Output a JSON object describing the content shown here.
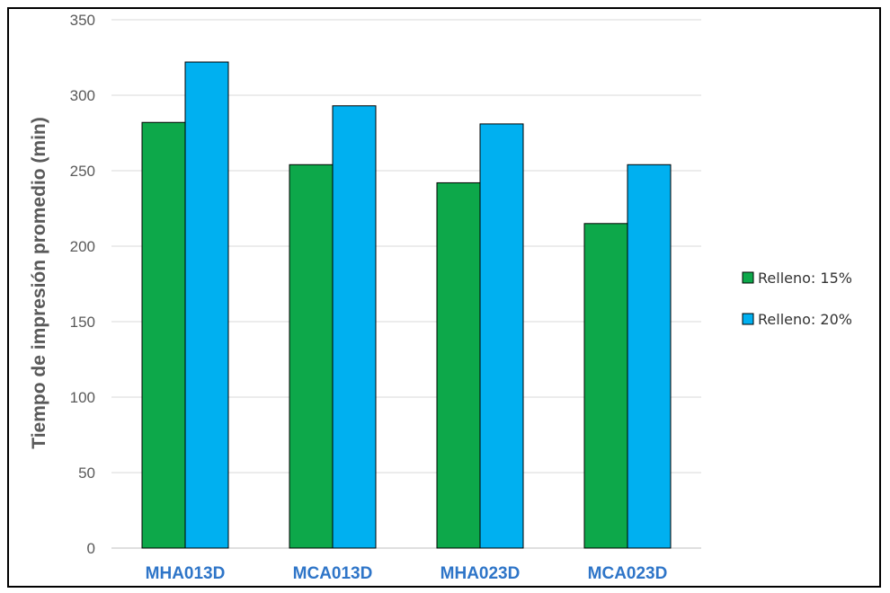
{
  "chart_data": {
    "type": "bar",
    "title": "",
    "xlabel": "",
    "ylabel": "Tiempo de impresión promedio (min)",
    "categories": [
      "MHA013D",
      "MCA013D",
      "MHA023D",
      "MCA023D"
    ],
    "series": [
      {
        "name": "Relleno: 15%",
        "color": "#0da84a",
        "values": [
          282,
          254,
          242,
          215
        ]
      },
      {
        "name": "Relleno: 20%",
        "color": "#00b0f0",
        "values": [
          322,
          293,
          281,
          254
        ]
      }
    ],
    "ylim": [
      0,
      350
    ],
    "yticks": [
      0,
      50,
      100,
      150,
      200,
      250,
      300,
      350
    ],
    "grid": true,
    "legend_position": "right"
  }
}
